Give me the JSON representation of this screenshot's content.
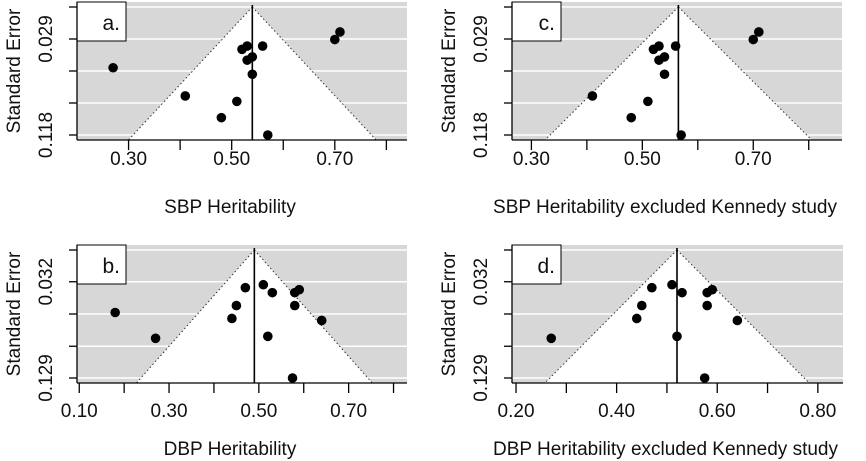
{
  "figure": {
    "background": "#ffffff",
    "shade_color": "#d7d7d7",
    "grid_color": "#ffffff",
    "point_color": "#000000"
  },
  "chart_data": [
    {
      "type": "scatter",
      "subtype": "funnel",
      "panel_label": "a.",
      "xlabel": "SBP Heritability",
      "ylabel": "Standard Error",
      "xlim": [
        0.2,
        0.84
      ],
      "ylim": [
        0.0,
        0.118
      ],
      "y_inverted": true,
      "xticks": [
        0.3,
        0.4,
        0.5,
        0.6,
        0.7,
        0.8
      ],
      "xtick_labels": [
        "0.30",
        "",
        "0.50",
        "",
        "0.70",
        ""
      ],
      "yticks": [
        0.0,
        0.0295,
        0.059,
        0.0885,
        0.118
      ],
      "ytick_labels": [
        "",
        "0.029",
        "",
        "",
        "0.118"
      ],
      "pooled_estimate": 0.54,
      "grid": true,
      "points": [
        {
          "x": 0.27,
          "se": 0.056
        },
        {
          "x": 0.41,
          "se": 0.082
        },
        {
          "x": 0.48,
          "se": 0.102
        },
        {
          "x": 0.51,
          "se": 0.087
        },
        {
          "x": 0.52,
          "se": 0.039
        },
        {
          "x": 0.53,
          "se": 0.036
        },
        {
          "x": 0.56,
          "se": 0.036
        },
        {
          "x": 0.53,
          "se": 0.049
        },
        {
          "x": 0.54,
          "se": 0.046
        },
        {
          "x": 0.54,
          "se": 0.062
        },
        {
          "x": 0.57,
          "se": 0.118
        },
        {
          "x": 0.7,
          "se": 0.03
        },
        {
          "x": 0.71,
          "se": 0.023
        }
      ]
    },
    {
      "type": "scatter",
      "subtype": "funnel",
      "panel_label": "b.",
      "xlabel": "DBP Heritability",
      "ylabel": "Standard Error",
      "xlim": [
        0.095,
        0.83
      ],
      "ylim": [
        0.0,
        0.129
      ],
      "y_inverted": true,
      "xticks": [
        0.1,
        0.2,
        0.3,
        0.4,
        0.5,
        0.6,
        0.7,
        0.8
      ],
      "xtick_labels": [
        "0.10",
        "",
        "0.30",
        "",
        "0.50",
        "",
        "0.70",
        ""
      ],
      "yticks": [
        0.0,
        0.032,
        0.0645,
        0.097,
        0.129
      ],
      "ytick_labels": [
        "",
        "0.032",
        "",
        "",
        "0.129"
      ],
      "pooled_estimate": 0.49,
      "grid": true,
      "points": [
        {
          "x": 0.18,
          "se": 0.063
        },
        {
          "x": 0.27,
          "se": 0.089
        },
        {
          "x": 0.44,
          "se": 0.069
        },
        {
          "x": 0.45,
          "se": 0.056
        },
        {
          "x": 0.47,
          "se": 0.038
        },
        {
          "x": 0.51,
          "se": 0.035
        },
        {
          "x": 0.53,
          "se": 0.043
        },
        {
          "x": 0.52,
          "se": 0.087
        },
        {
          "x": 0.58,
          "se": 0.043
        },
        {
          "x": 0.59,
          "se": 0.04
        },
        {
          "x": 0.58,
          "se": 0.056
        },
        {
          "x": 0.64,
          "se": 0.071
        },
        {
          "x": 0.575,
          "se": 0.129
        }
      ]
    },
    {
      "type": "scatter",
      "subtype": "funnel",
      "panel_label": "c.",
      "xlabel": "SBP Heritability excluded Kennedy study",
      "ylabel": "Standard Error",
      "xlim": [
        0.265,
        0.86
      ],
      "ylim": [
        0.0,
        0.118
      ],
      "y_inverted": true,
      "xticks": [
        0.3,
        0.4,
        0.5,
        0.6,
        0.7,
        0.8
      ],
      "xtick_labels": [
        "0.30",
        "",
        "0.50",
        "",
        "0.70",
        ""
      ],
      "yticks": [
        0.0,
        0.0295,
        0.059,
        0.0885,
        0.118
      ],
      "ytick_labels": [
        "",
        "0.029",
        "",
        "",
        "0.118"
      ],
      "pooled_estimate": 0.565,
      "grid": true,
      "points": [
        {
          "x": 0.41,
          "se": 0.082
        },
        {
          "x": 0.48,
          "se": 0.102
        },
        {
          "x": 0.51,
          "se": 0.087
        },
        {
          "x": 0.52,
          "se": 0.039
        },
        {
          "x": 0.53,
          "se": 0.036
        },
        {
          "x": 0.56,
          "se": 0.036
        },
        {
          "x": 0.53,
          "se": 0.049
        },
        {
          "x": 0.54,
          "se": 0.046
        },
        {
          "x": 0.54,
          "se": 0.062
        },
        {
          "x": 0.57,
          "se": 0.118
        },
        {
          "x": 0.7,
          "se": 0.03
        },
        {
          "x": 0.71,
          "se": 0.023
        }
      ]
    },
    {
      "type": "scatter",
      "subtype": "funnel",
      "panel_label": "d.",
      "xlabel": "DBP Heritability excluded Kennedy study",
      "ylabel": "Standard Error",
      "xlim": [
        0.192,
        0.85
      ],
      "ylim": [
        0.0,
        0.129
      ],
      "y_inverted": true,
      "xticks": [
        0.2,
        0.3,
        0.4,
        0.5,
        0.6,
        0.7,
        0.8
      ],
      "xtick_labels": [
        "0.20",
        "",
        "0.40",
        "",
        "0.60",
        "",
        "0.80"
      ],
      "yticks": [
        0.0,
        0.032,
        0.0645,
        0.097,
        0.129
      ],
      "ytick_labels": [
        "",
        "0.032",
        "",
        "",
        "0.129"
      ],
      "pooled_estimate": 0.52,
      "grid": true,
      "points": [
        {
          "x": 0.27,
          "se": 0.089
        },
        {
          "x": 0.44,
          "se": 0.069
        },
        {
          "x": 0.45,
          "se": 0.056
        },
        {
          "x": 0.47,
          "se": 0.038
        },
        {
          "x": 0.51,
          "se": 0.035
        },
        {
          "x": 0.53,
          "se": 0.043
        },
        {
          "x": 0.52,
          "se": 0.087
        },
        {
          "x": 0.58,
          "se": 0.043
        },
        {
          "x": 0.59,
          "se": 0.04
        },
        {
          "x": 0.58,
          "se": 0.056
        },
        {
          "x": 0.64,
          "se": 0.071
        },
        {
          "x": 0.575,
          "se": 0.129
        }
      ]
    }
  ]
}
